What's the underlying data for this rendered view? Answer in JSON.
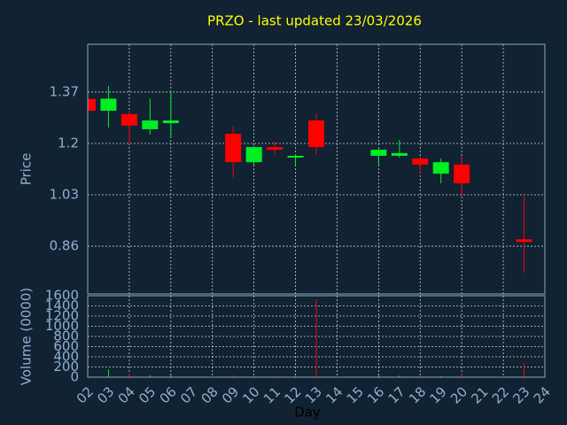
{
  "chart_data": [
    {
      "type": "candlestick",
      "title": "PRZO - last updated 23/03/2026",
      "ylabel": "Price",
      "x": [
        2,
        3,
        4,
        5,
        6,
        9,
        10,
        11,
        12,
        13,
        16,
        17,
        18,
        19,
        20,
        23
      ],
      "open": [
        1.347,
        1.308,
        1.297,
        1.247,
        1.267,
        1.232,
        1.138,
        1.188,
        1.156,
        1.276,
        1.159,
        1.159,
        1.15,
        1.1,
        1.13,
        0.883
      ],
      "high": [
        1.347,
        1.39,
        1.308,
        1.349,
        1.373,
        1.256,
        1.191,
        1.206,
        1.165,
        1.3,
        1.188,
        1.212,
        1.159,
        1.15,
        1.159,
        1.03
      ],
      "low": [
        1.308,
        1.253,
        1.197,
        1.229,
        1.22,
        1.088,
        1.13,
        1.162,
        1.13,
        1.162,
        1.13,
        1.153,
        1.1,
        1.068,
        1.024,
        0.772
      ],
      "close": [
        1.308,
        1.348,
        1.259,
        1.276,
        1.276,
        1.138,
        1.188,
        1.179,
        1.159,
        1.188,
        1.179,
        1.168,
        1.13,
        1.138,
        1.068,
        0.874
      ],
      "up_color": "#00ee22",
      "down_color": "#ff0000",
      "xlim": [
        2,
        24
      ],
      "ylim": [
        0.702,
        1.528
      ],
      "yticks": [
        0.86,
        1.03,
        1.2,
        1.37
      ],
      "grid": true
    },
    {
      "type": "volume",
      "ylabel": "Volume (0000)",
      "xlabel": "Day",
      "x": [
        2,
        3,
        4,
        5,
        6,
        9,
        10,
        11,
        12,
        13,
        16,
        17,
        18,
        19,
        20,
        23
      ],
      "values": [
        30,
        150,
        70,
        40,
        60,
        40,
        20,
        30,
        20,
        1530,
        50,
        30,
        30,
        20,
        70,
        280
      ],
      "xlim": [
        2,
        24
      ],
      "ylim": [
        0,
        1600
      ],
      "yticks": [
        0,
        200,
        400,
        600,
        800,
        1000,
        1200,
        1400,
        1600
      ],
      "xticks": [
        {
          "value": 2,
          "label": "02"
        },
        {
          "value": 3,
          "label": "03"
        },
        {
          "value": 4,
          "label": "04"
        },
        {
          "value": 5,
          "label": "05"
        },
        {
          "value": 6,
          "label": "06"
        },
        {
          "value": 7,
          "label": "07"
        },
        {
          "value": 8,
          "label": "08"
        },
        {
          "value": 9,
          "label": "09"
        },
        10,
        11,
        12,
        13,
        14,
        15,
        16,
        17,
        18,
        19,
        20,
        21,
        22,
        23,
        24
      ],
      "grid": true
    }
  ]
}
